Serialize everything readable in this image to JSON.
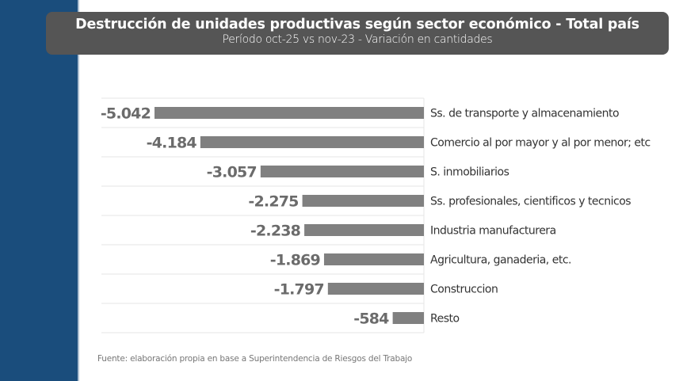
{
  "header": {
    "title": "Destrucción de unidades productivas según sector económico - Total país",
    "subtitle": "Período oct-25 vs nov-23 - Variación en cantidades"
  },
  "footer": {
    "source": "Fuente: elaboración propia en base a Superintendencia de Riesgos del Trabajo"
  },
  "colors": {
    "sidebar": "#1a4d7c",
    "banner": "#555555",
    "bar": "#808080",
    "value_label": "#6b6b6b",
    "category_label": "#333333",
    "grid": "#e6e6e6"
  },
  "chart_data": {
    "type": "bar",
    "orientation": "horizontal",
    "title": "Destrucción de unidades productivas según sector económico - Total país",
    "subtitle": "Período oct-25 vs nov-23 - Variación en cantidades",
    "xlabel": "",
    "ylabel": "",
    "categories": [
      "Ss. de transporte y almacenamiento",
      "Comercio al por mayor y al por menor; etc",
      "S. inmobiliarios",
      "Ss. profesionales, cientificos y tecnicos",
      "Industria manufacturera",
      "Agricultura, ganaderia, etc.",
      "Construccion",
      "Resto"
    ],
    "values": [
      -5042,
      -4184,
      -3057,
      -2275,
      -2238,
      -1869,
      -1797,
      -584
    ],
    "value_labels": [
      "-5.042",
      "-4.184",
      "-3.057",
      "-2.275",
      "-2.238",
      "-1.869",
      "-1.797",
      "-584"
    ],
    "xlim": [
      -5042,
      0
    ],
    "grid": true,
    "legend": "none"
  }
}
